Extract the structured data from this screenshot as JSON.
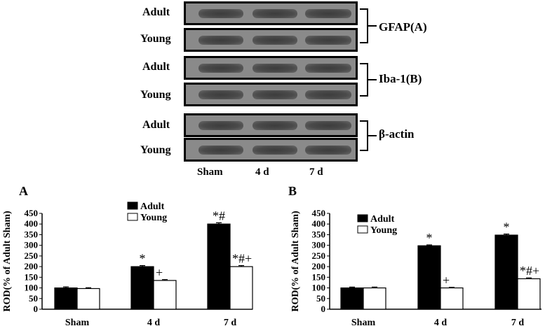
{
  "blot": {
    "rows": [
      {
        "label": "Adult",
        "group": "GFAP(A)"
      },
      {
        "label": "Young",
        "group": "GFAP(A)"
      },
      {
        "label": "Adult",
        "group": "Iba-1(B)"
      },
      {
        "label": "Young",
        "group": "Iba-1(B)"
      },
      {
        "label": "Adult",
        "group": "β-actin"
      },
      {
        "label": "Young",
        "group": "β-actin"
      }
    ],
    "groups": [
      "GFAP(A)",
      "Iba-1(B)",
      "β-actin"
    ],
    "lanes": [
      "Sham",
      "4 d",
      "7 d"
    ]
  },
  "chart_data": [
    {
      "type": "bar",
      "panel": "A",
      "categories": [
        "Sham",
        "4 d",
        "7 d"
      ],
      "series": [
        {
          "name": "Adult",
          "values": [
            100,
            200,
            400
          ],
          "error": [
            5,
            5,
            6
          ],
          "color": "#000000"
        },
        {
          "name": "Young",
          "values": [
            97,
            135,
            200
          ],
          "error": [
            4,
            4,
            5
          ],
          "color": "#ffffff"
        }
      ],
      "annotations": {
        "Adult": [
          "",
          "*",
          "*#"
        ],
        "Young": [
          "",
          "+",
          "*#+"
        ]
      },
      "ylabel": "ROD(% of Adult Sham)",
      "ylim": [
        0,
        450
      ],
      "yticks": [
        0,
        50,
        100,
        150,
        200,
        250,
        300,
        350,
        400,
        450
      ],
      "legend_position": "top-center"
    },
    {
      "type": "bar",
      "panel": "B",
      "categories": [
        "Sham",
        "4 d",
        "7 d"
      ],
      "series": [
        {
          "name": "Adult",
          "values": [
            100,
            298,
            348
          ],
          "error": [
            4,
            4,
            5
          ],
          "color": "#000000"
        },
        {
          "name": "Young",
          "values": [
            100,
            100,
            143
          ],
          "error": [
            4,
            3,
            4
          ],
          "color": "#ffffff"
        }
      ],
      "annotations": {
        "Adult": [
          "",
          "*",
          "*"
        ],
        "Young": [
          "",
          "+",
          "*#+"
        ]
      },
      "ylabel": "ROD(% of Adult Sham)",
      "ylim": [
        0,
        450
      ],
      "yticks": [
        0,
        50,
        100,
        150,
        200,
        250,
        300,
        350,
        400,
        450
      ],
      "legend_position": "top-center"
    }
  ]
}
